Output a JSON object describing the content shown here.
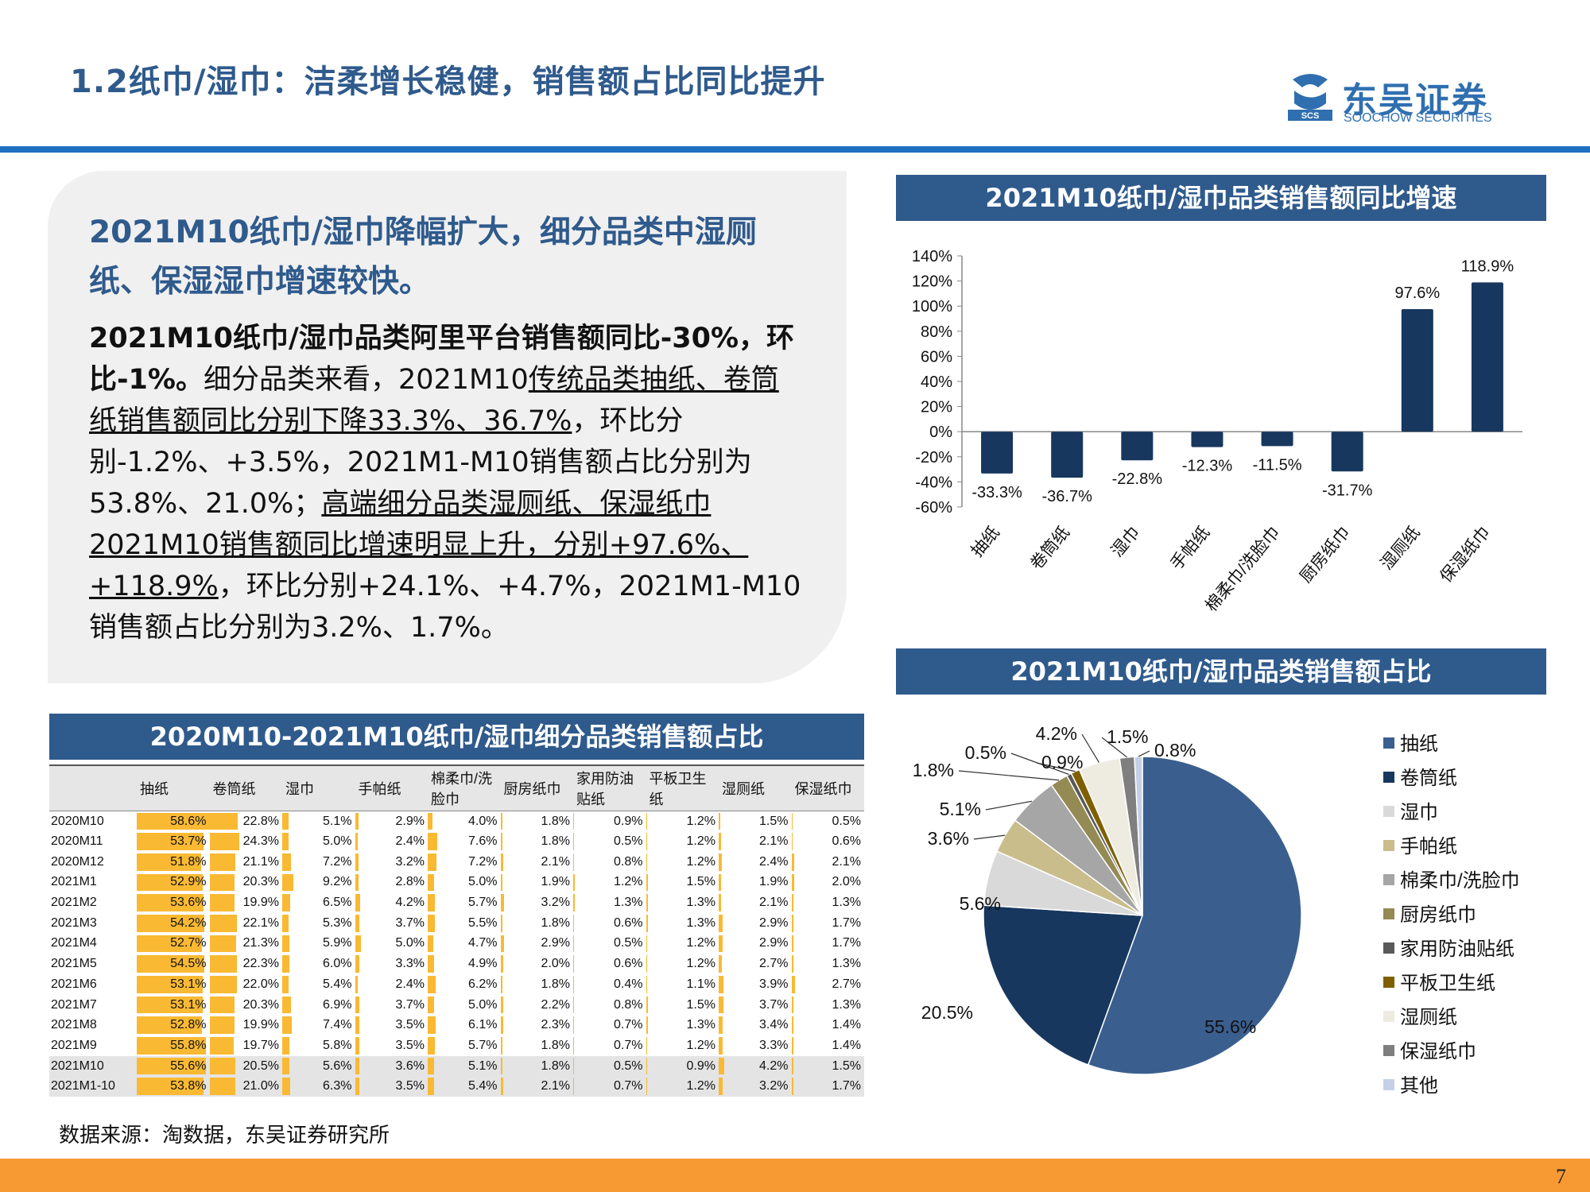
{
  "header": {
    "title": "1.2纸巾/湿巾：洁柔增长稳健，销售额占比同比提升"
  },
  "logo": {
    "cn": "东吴证券",
    "en": "SOOCHOW SECURITIES",
    "mark": "SCS",
    "brand_color": "#2f6fb0"
  },
  "panel": {
    "heading": "2021M10纸巾/湿巾降幅扩大，细分品类中湿厕纸、保湿湿巾增速较快。",
    "body_bold": "2021M10纸巾/湿巾品类阿里平台销售额同比-30%，环比-1%。",
    "body_1": "细分品类来看，2021M10",
    "body_u1": "传统品类抽纸、卷筒纸销售额同比分别下降33.3%、36.7%",
    "body_2": "，环比分别-1.2%、+3.5%，2021M1-M10销售额占比分别为53.8%、21.0%；",
    "body_u2": "高端细分品类湿厕纸、保湿纸巾2021M10销售额同比增速明显上升，分别+97.6%、+118.9%",
    "body_3": "，环比分别+24.1%、+4.7%，2021M1-M10销售额占比分别为3.2%、1.7%。"
  },
  "bar_banner": "2021M10纸巾/湿巾品类销售额同比增速",
  "pie_banner": "2021M10纸巾/湿巾品类销售额占比",
  "table_banner": "2020M10-2021M10纸巾/湿巾细分品类销售额占比",
  "source": "数据来源：淘数据，东吴证券研究所",
  "page_number": "7",
  "colors": {
    "banner": "#2f5a8c",
    "bar": "#17375e",
    "table_bar": "#f9b933",
    "footer": "#f79a34"
  },
  "chart_data": [
    {
      "type": "bar",
      "title": "2021M10纸巾/湿巾品类销售额同比增速",
      "categories": [
        "抽纸",
        "卷筒纸",
        "湿巾",
        "手帕纸",
        "棉柔巾/洗脸巾",
        "厨房纸巾",
        "湿厕纸",
        "保湿纸巾"
      ],
      "values": [
        -33.3,
        -36.7,
        -22.8,
        -12.3,
        -11.5,
        -31.7,
        97.6,
        118.9
      ],
      "data_labels": [
        "-33.3%",
        "-36.7%",
        "-22.8%",
        "-12.3%",
        "-11.5%",
        "-31.7%",
        "97.6%",
        "118.9%"
      ],
      "ylim": [
        -60,
        140
      ],
      "yticks": [
        "-60%",
        "-40%",
        "-20%",
        "0%",
        "20%",
        "40%",
        "60%",
        "80%",
        "100%",
        "120%",
        "140%"
      ],
      "grid": false,
      "xlabel": "",
      "ylabel": ""
    },
    {
      "type": "pie",
      "title": "2021M10纸巾/湿巾品类销售额占比",
      "legend_position": "right",
      "slices": [
        {
          "name": "抽纸",
          "value": 55.6,
          "label": "55.6%",
          "color": "#3a5f8f"
        },
        {
          "name": "卷筒纸",
          "value": 20.5,
          "label": "20.5%",
          "color": "#17375e"
        },
        {
          "name": "湿巾",
          "value": 5.6,
          "label": "5.6%",
          "color": "#d9d9d9"
        },
        {
          "name": "手帕纸",
          "value": 3.6,
          "label": "3.6%",
          "color": "#c9bd8c"
        },
        {
          "name": "棉柔巾/洗脸巾",
          "value": 5.1,
          "label": "5.1%",
          "color": "#a6a6a6"
        },
        {
          "name": "厨房纸巾",
          "value": 1.8,
          "label": "1.8%",
          "color": "#948a54"
        },
        {
          "name": "家用防油贴纸",
          "value": 0.5,
          "label": "0.5%",
          "color": "#595959"
        },
        {
          "name": "平板卫生纸",
          "value": 0.9,
          "label": "0.9%",
          "color": "#7f6000"
        },
        {
          "name": "湿厕纸",
          "value": 4.2,
          "label": "4.2%",
          "color": "#eeece1"
        },
        {
          "name": "保湿纸巾",
          "value": 1.5,
          "label": "1.5%",
          "color": "#7f7f7f"
        },
        {
          "name": "其他",
          "value": 0.8,
          "label": "0.8%",
          "color": "#c5d0e6"
        }
      ]
    },
    {
      "type": "table",
      "title": "2020M10-2021M10纸巾/湿巾细分品类销售额占比",
      "columns": [
        "",
        "抽纸",
        "卷筒纸",
        "湿巾",
        "手帕纸",
        "棉柔巾/洗脸巾",
        "厨房纸巾",
        "家用防油贴纸",
        "平板卫生纸",
        "湿厕纸",
        "保湿纸巾"
      ],
      "rows": [
        [
          "2020M10",
          58.6,
          22.8,
          5.1,
          2.9,
          4.0,
          1.8,
          0.9,
          1.2,
          1.5,
          0.5
        ],
        [
          "2020M11",
          53.7,
          24.3,
          5.0,
          2.4,
          7.6,
          1.8,
          0.5,
          1.2,
          2.1,
          0.6
        ],
        [
          "2020M12",
          51.8,
          21.1,
          7.2,
          3.2,
          7.2,
          2.1,
          0.8,
          1.2,
          2.4,
          2.1
        ],
        [
          "2021M1",
          52.9,
          20.3,
          9.2,
          2.8,
          5.0,
          1.9,
          1.2,
          1.5,
          1.9,
          2.0
        ],
        [
          "2021M2",
          53.6,
          19.9,
          6.5,
          4.2,
          5.7,
          3.2,
          1.3,
          1.3,
          2.1,
          1.3
        ],
        [
          "2021M3",
          54.2,
          22.1,
          5.3,
          3.7,
          5.5,
          1.8,
          0.6,
          1.3,
          2.9,
          1.7
        ],
        [
          "2021M4",
          52.7,
          21.3,
          5.9,
          5.0,
          4.7,
          2.9,
          0.5,
          1.2,
          2.9,
          1.7
        ],
        [
          "2021M5",
          54.5,
          22.3,
          6.0,
          3.3,
          4.9,
          2.0,
          0.6,
          1.2,
          2.7,
          1.3
        ],
        [
          "2021M6",
          53.1,
          22.0,
          5.4,
          2.4,
          6.2,
          1.8,
          0.4,
          1.1,
          3.9,
          2.7
        ],
        [
          "2021M7",
          53.1,
          20.3,
          6.9,
          3.7,
          5.0,
          2.2,
          0.8,
          1.5,
          3.7,
          1.3
        ],
        [
          "2021M8",
          52.8,
          19.9,
          7.4,
          3.5,
          6.1,
          2.3,
          0.7,
          1.3,
          3.4,
          1.4
        ],
        [
          "2021M9",
          55.8,
          19.7,
          5.8,
          3.5,
          5.7,
          1.8,
          0.7,
          1.2,
          3.3,
          1.4
        ],
        [
          "2021M10",
          55.6,
          20.5,
          5.6,
          3.6,
          5.1,
          1.8,
          0.5,
          0.9,
          4.2,
          1.5
        ],
        [
          "2021M1-10",
          53.8,
          21.0,
          6.3,
          3.5,
          5.4,
          2.1,
          0.7,
          1.2,
          3.2,
          1.7
        ]
      ],
      "highlighted_rows": [
        "2021M10",
        "2021M1-10"
      ]
    }
  ]
}
